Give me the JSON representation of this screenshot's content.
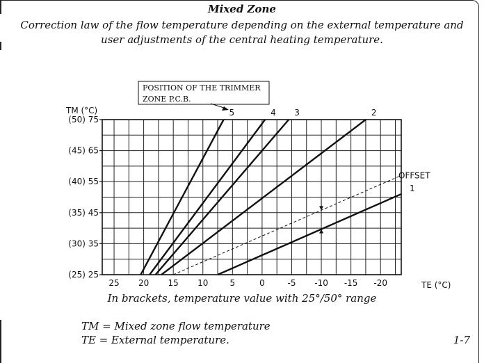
{
  "header": {
    "title": "Mixed Zone",
    "subtitle_line1": "Correction law of the flow temperature depending on the external temperature and",
    "subtitle_line2": "user adjustments of the central heating temperature."
  },
  "chart_data": {
    "type": "line",
    "ylabel": "TM (°C)",
    "xlabel": "TE (°C)",
    "annotation_line1": "POSITION OF THE TRIMMER",
    "annotation_line2": "ZONE P.C.B.",
    "x_ticks": [
      "25",
      "20",
      "15",
      "10",
      "5",
      "0",
      "-5",
      "-10",
      "-15",
      "-20"
    ],
    "x_tick_values": [
      25,
      20,
      15,
      10,
      5,
      0,
      -5,
      -10,
      -15,
      -20
    ],
    "y_ticks": [
      "(25) 25",
      "(30) 35",
      "(35) 45",
      "(40) 55",
      "(45) 65",
      "(50) 75"
    ],
    "y_tick_values": [
      25,
      35,
      45,
      55,
      65,
      75
    ],
    "xlim": [
      27,
      -23.5
    ],
    "ylim": [
      25,
      75
    ],
    "x_reversed": true,
    "grid": true,
    "series": [
      {
        "name": "1",
        "dashed": false,
        "points": [
          [
            7.5,
            25
          ],
          [
            -23.5,
            51
          ]
        ]
      },
      {
        "name": "OFFSET",
        "dashed": true,
        "points": [
          [
            15,
            25
          ],
          [
            -23.5,
            57
          ]
        ]
      },
      {
        "name": "2",
        "dashed": false,
        "points": [
          [
            17,
            25
          ],
          [
            -17.5,
            75
          ]
        ]
      },
      {
        "name": "3",
        "dashed": false,
        "points": [
          [
            18,
            25
          ],
          [
            -4.5,
            75
          ]
        ]
      },
      {
        "name": "4",
        "dashed": false,
        "points": [
          [
            19,
            25
          ],
          [
            -0.5,
            75
          ]
        ]
      },
      {
        "name": "5",
        "dashed": false,
        "points": [
          [
            20.5,
            25
          ],
          [
            6.5,
            75
          ]
        ]
      }
    ],
    "offset_marker_x": -10
  },
  "footer": {
    "caption": "In brackets, temperature value with 25°/50° range",
    "legend_tm": "TM = Mixed zone flow temperature",
    "legend_te": "TE = External temperature.",
    "figure_number": "1-7"
  }
}
